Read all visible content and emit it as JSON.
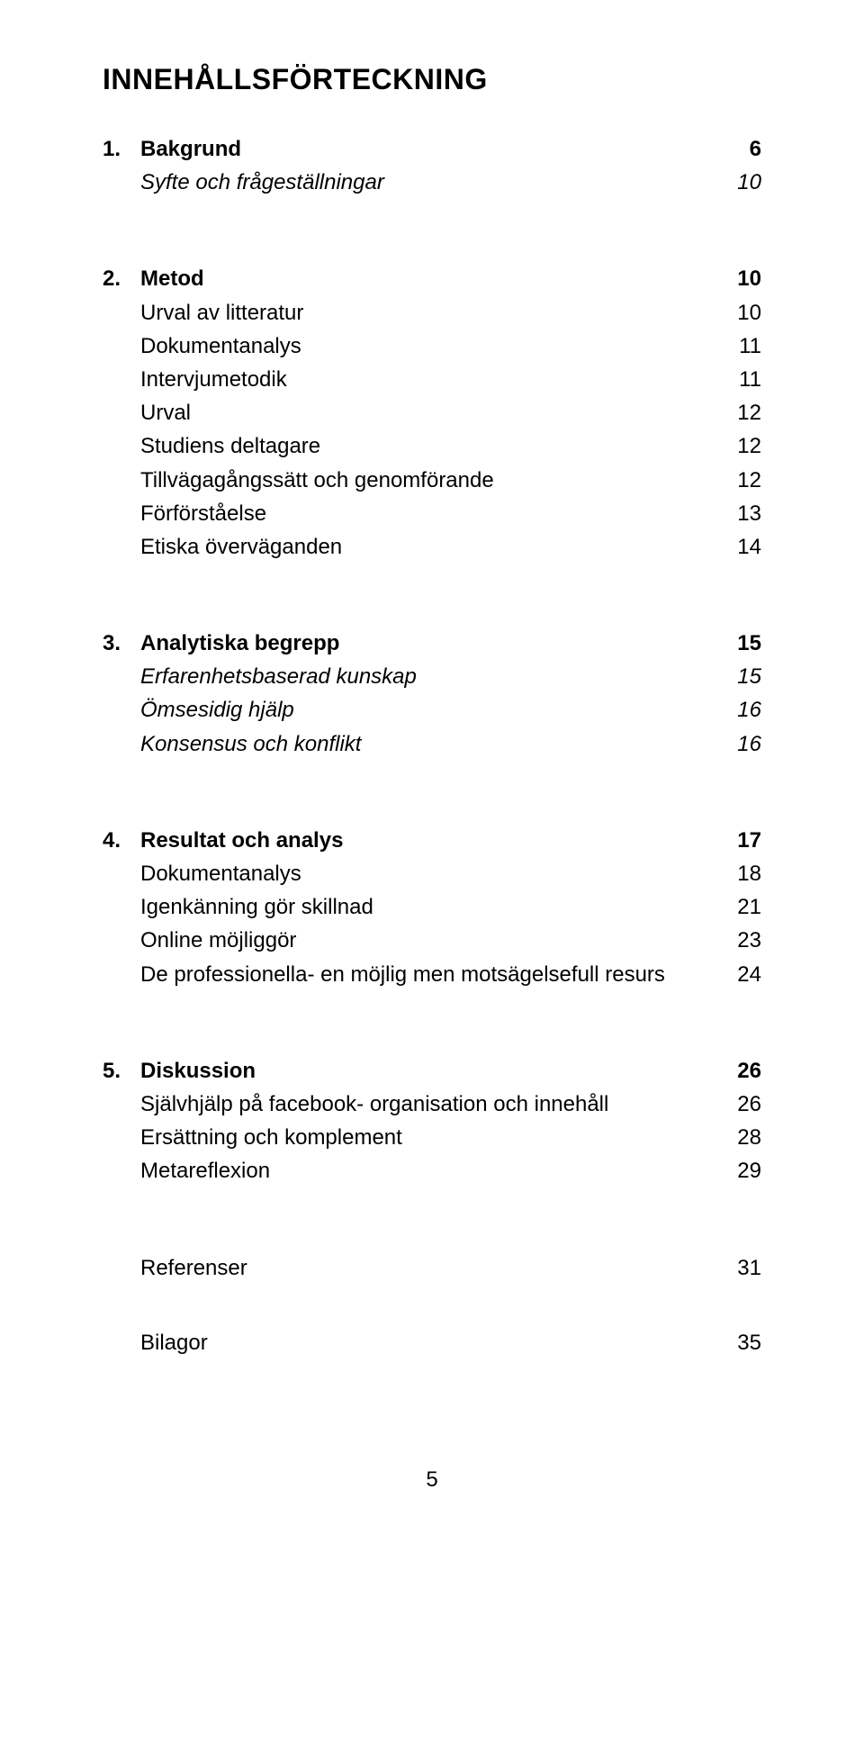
{
  "title": "INNEHÅLLSFÖRTECKNING",
  "sections": [
    {
      "num": "1.",
      "heading": "Bakgrund",
      "page": "6",
      "items": [
        {
          "label": "Syfte och frågeställningar",
          "page": "10",
          "italic": true
        }
      ]
    },
    {
      "num": "2.",
      "heading": "Metod",
      "page": "10",
      "items": [
        {
          "label": "Urval av litteratur",
          "page": "10",
          "italic": false
        },
        {
          "label": "Dokumentanalys",
          "page": "11",
          "italic": false
        },
        {
          "label": "Intervjumetodik",
          "page": "11",
          "italic": false
        },
        {
          "label": "Urval",
          "page": "12",
          "italic": false
        },
        {
          "label": "Studiens deltagare",
          "page": "12",
          "italic": false
        },
        {
          "label": "Tillvägagångssätt och genomförande",
          "page": "12",
          "italic": false
        },
        {
          "label": "Förförståelse",
          "page": "13",
          "italic": false
        },
        {
          "label": "Etiska överväganden",
          "page": "14",
          "italic": false
        }
      ]
    },
    {
      "num": "3.",
      "heading": "Analytiska begrepp",
      "page": "15",
      "items": [
        {
          "label": "Erfarenhetsbaserad kunskap",
          "page": "15",
          "italic": true
        },
        {
          "label": "Ömsesidig hjälp",
          "page": "16",
          "italic": true
        },
        {
          "label": "Konsensus och konflikt",
          "page": "16",
          "italic": true
        }
      ]
    },
    {
      "num": "4.",
      "heading": "Resultat och analys",
      "page": "17",
      "items": [
        {
          "label": "Dokumentanalys",
          "page": "18",
          "italic": false
        },
        {
          "label": "Igenkänning gör skillnad",
          "page": "21",
          "italic": false
        },
        {
          "label": "Online möjliggör",
          "page": "23",
          "italic": false
        },
        {
          "label": "De professionella- en möjlig men motsägelsefull resurs",
          "page": "24",
          "italic": false
        }
      ]
    },
    {
      "num": "5.",
      "heading": "Diskussion",
      "page": "26",
      "items": [
        {
          "label": "Självhjälp på facebook- organisation och innehåll",
          "page": "26",
          "italic": false
        },
        {
          "label": "Ersättning och komplement",
          "page": "28",
          "italic": false
        },
        {
          "label": "Metareflexion",
          "page": "29",
          "italic": false
        }
      ]
    }
  ],
  "tail": [
    {
      "label": "Referenser",
      "page": "31"
    },
    {
      "label": "Bilagor",
      "page": "35"
    }
  ],
  "footer_page_number": "5"
}
